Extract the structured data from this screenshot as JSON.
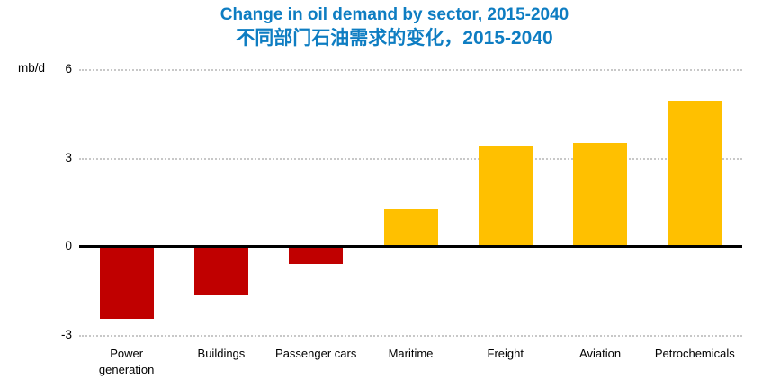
{
  "header": {
    "title_en": "Change in oil demand by sector, 2015-2040",
    "title_zh": "不同部门石油需求的变化，2015-2040",
    "title_color": "#0E7DC2"
  },
  "chart_data": {
    "type": "bar",
    "title": "Change in oil demand by sector, 2015-2040",
    "subtitle_zh": "不同部门石油需求的变化，2015-2040",
    "unit_label": "mb/d",
    "categories": [
      "Power generation",
      "Buildings",
      "Passenger cars",
      "Maritime",
      "Freight",
      "Aviation",
      "Petrochemicals"
    ],
    "values": [
      -2.45,
      -1.65,
      -0.6,
      1.25,
      3.4,
      3.5,
      4.95
    ],
    "ylim": [
      -3,
      6
    ],
    "yticks": [
      6,
      3,
      0,
      -3
    ],
    "grid": "horizontal dotted at 6, 3 and -3; solid black axis at 0",
    "legend": "none",
    "positive_color": "#FFC000",
    "negative_color": "#C00000",
    "gridline_color": "#C8C8C8",
    "axis_color": "#000000"
  }
}
